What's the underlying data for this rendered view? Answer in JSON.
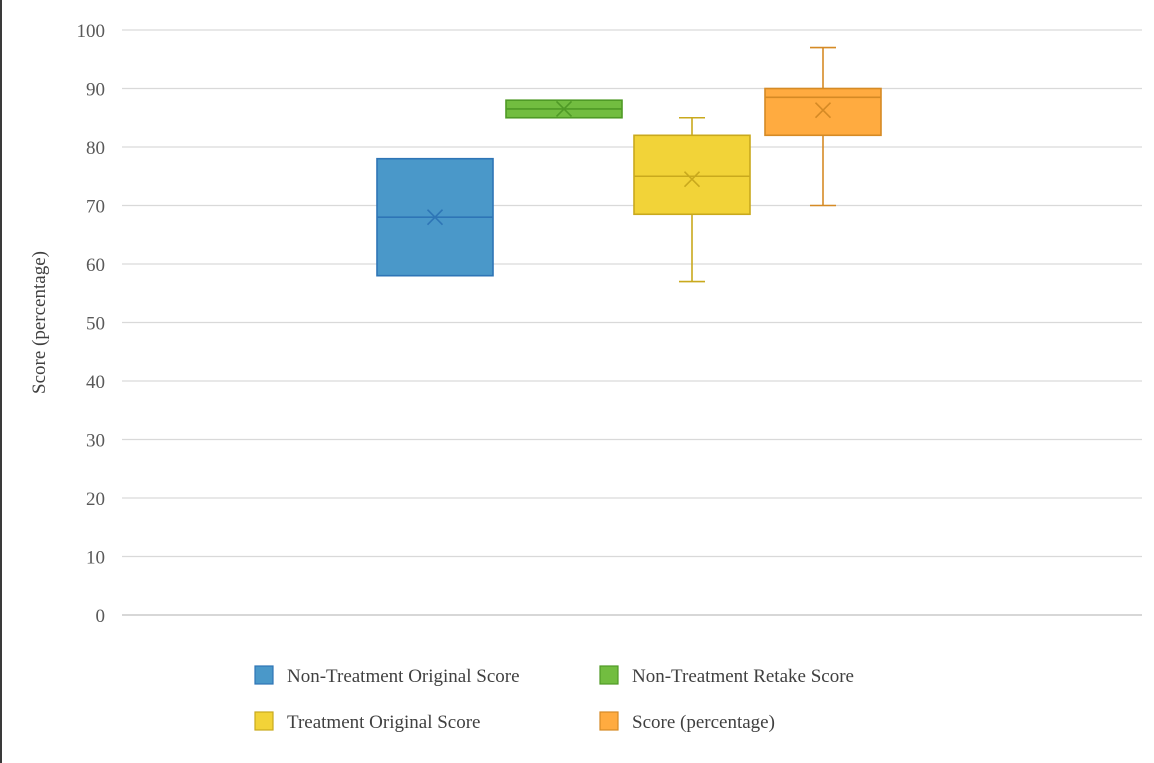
{
  "chart_data": {
    "type": "box",
    "title": "",
    "xlabel": "",
    "ylabel": "Score (percentage)",
    "ylim": [
      0,
      100
    ],
    "yticks": [
      0,
      10,
      20,
      30,
      40,
      50,
      60,
      70,
      80,
      90,
      100
    ],
    "grid": true,
    "legend_position": "bottom",
    "series": [
      {
        "name": "Non-Treatment Original Score",
        "color": "#4a98c9",
        "stroke": "#2e75b6",
        "min": 58,
        "q1": 58,
        "median": 68,
        "q3": 78,
        "max": 78,
        "mean": 68
      },
      {
        "name": "Non-Treatment Retake Score",
        "color": "#72bd40",
        "stroke": "#4f9a26",
        "min": 85,
        "q1": 85,
        "median": 86.5,
        "q3": 88,
        "max": 88,
        "mean": 86.5
      },
      {
        "name": "Treatment Original Score",
        "color": "#f2d338",
        "stroke": "#c9a91d",
        "min": 57,
        "q1": 68.5,
        "median": 75,
        "q3": 82,
        "max": 85,
        "mean": 74.5
      },
      {
        "name": "Score (percentage)",
        "color": "#ffab40",
        "stroke": "#d58a25",
        "min": 70,
        "q1": 82,
        "median": 88.5,
        "q3": 90,
        "max": 97,
        "mean": 86.3
      }
    ]
  }
}
